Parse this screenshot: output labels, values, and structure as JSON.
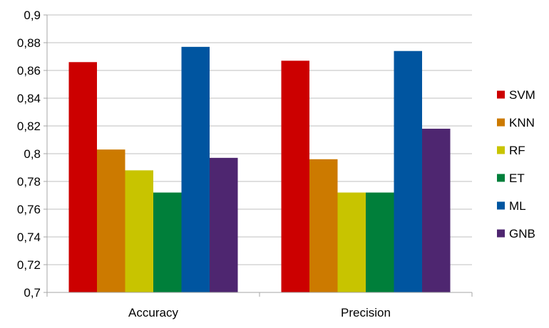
{
  "chart_data": {
    "type": "bar",
    "categories": [
      "Accuracy",
      "Precision"
    ],
    "series": [
      {
        "name": "SVM",
        "values": [
          0.866,
          0.867
        ],
        "color": "#cc0000"
      },
      {
        "name": "KNN",
        "values": [
          0.803,
          0.796
        ],
        "color": "#cc7a00"
      },
      {
        "name": "RF",
        "values": [
          0.788,
          0.772
        ],
        "color": "#c8c400"
      },
      {
        "name": "ET",
        "values": [
          0.772,
          0.772
        ],
        "color": "#007f3a"
      },
      {
        "name": "ML",
        "values": [
          0.877,
          0.874
        ],
        "color": "#0055a0"
      },
      {
        "name": "GNB",
        "values": [
          0.797,
          0.818
        ],
        "color": "#4e2670"
      }
    ],
    "yticks": [
      "0,7",
      "0,72",
      "0,74",
      "0,76",
      "0,78",
      "0,8",
      "0,82",
      "0,84",
      "0,86",
      "0,88",
      "0,9"
    ],
    "ylim": [
      0.7,
      0.9
    ],
    "grid": true,
    "legend_position": "right",
    "title": "",
    "xlabel": "",
    "ylabel": "",
    "gridline_color": "#bfbfbf",
    "axis_color": "#a6a6a6"
  }
}
